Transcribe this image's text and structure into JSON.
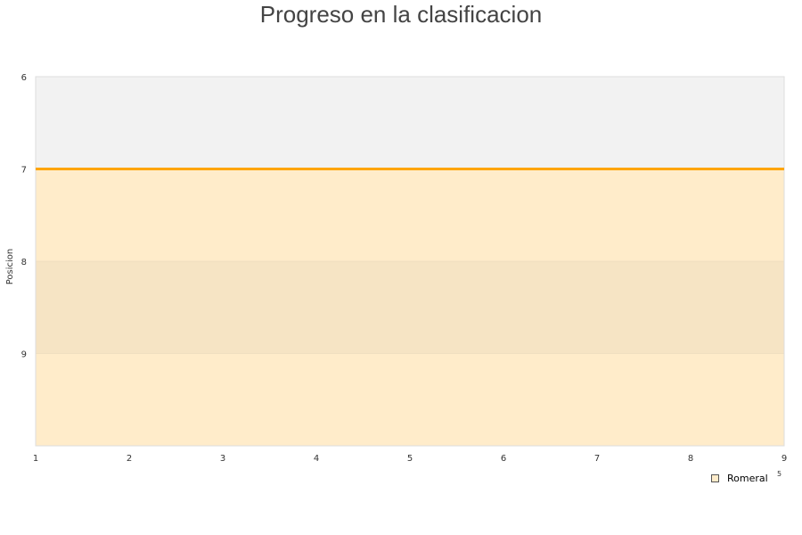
{
  "chart_data": {
    "type": "area",
    "title": "Progreso en la clasificacion",
    "xlabel": "",
    "xlabel_fragment": "5",
    "ylabel": "Posicion",
    "x": [
      1,
      2,
      3,
      4,
      5,
      6,
      7,
      8,
      9
    ],
    "xlim": [
      1,
      9
    ],
    "ylim": [
      6,
      10
    ],
    "y_inverted": true,
    "y_ticks": [
      6,
      7,
      8,
      9
    ],
    "series": [
      {
        "name": "Romeral",
        "values": [
          7,
          7,
          7,
          7,
          7,
          7,
          7,
          7,
          7
        ],
        "color": "#ffa500",
        "fill": "#ffecca"
      }
    ],
    "highlight_band": [
      8,
      9
    ],
    "band_color": "#f5e3c3",
    "background": "#f2f2f2",
    "legend_position": "bottom-right"
  }
}
